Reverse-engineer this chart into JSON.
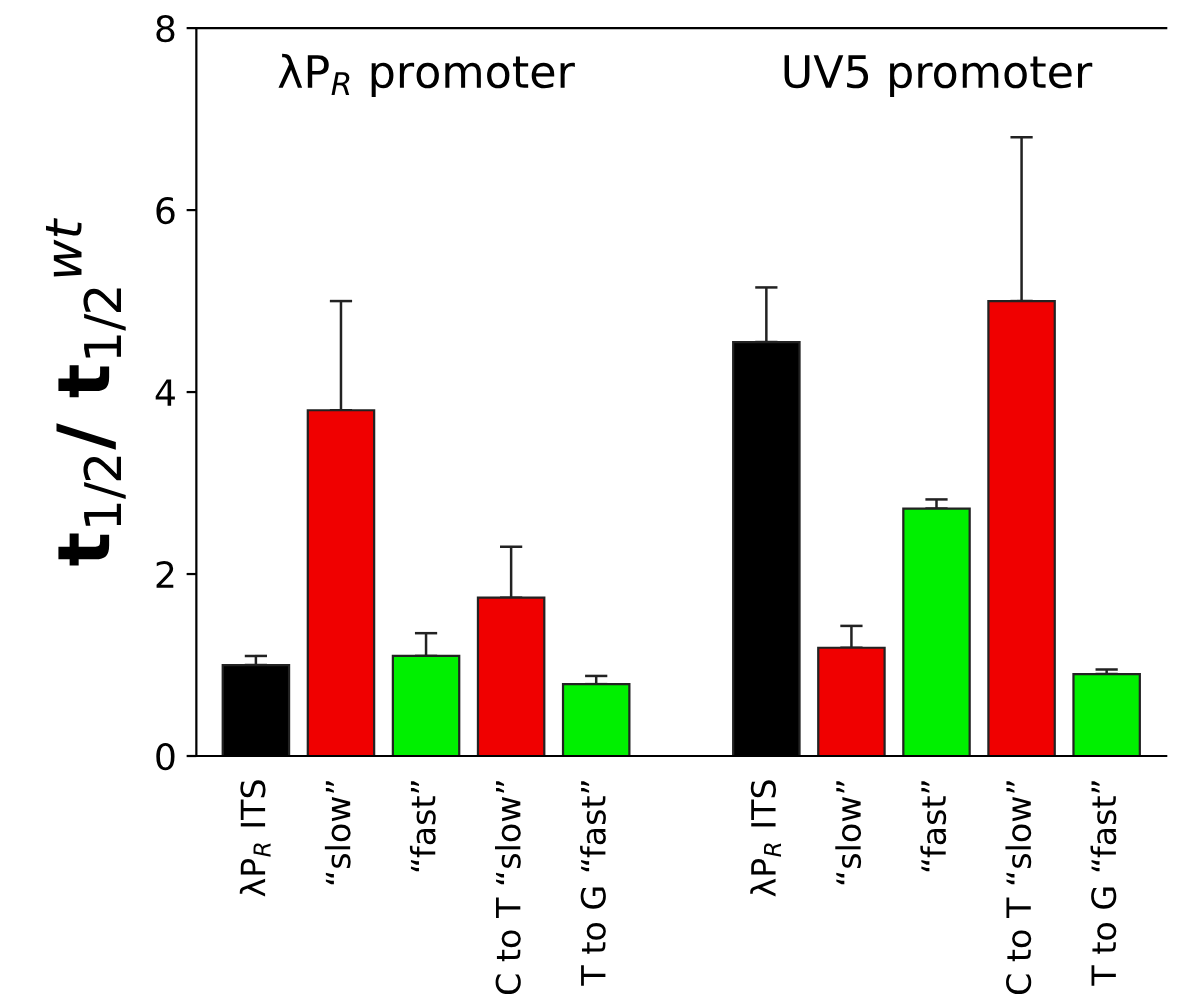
{
  "chart_data": {
    "type": "bar",
    "ylabel": "t$_{1/2}$/ t$_{1/2}$$^{wt}$",
    "annotations": [
      "λP$_{R}$ promoter",
      "UV5 promoter"
    ],
    "categories": [
      "λP$_{R}$ ITS",
      "“slow”",
      "“fast”",
      "C to T “slow”",
      "T to G “fast”",
      null,
      "λP$_{R}$ ITS",
      "“slow”",
      "“fast”",
      "C to T “slow”",
      "T to G “fast”"
    ],
    "values": [
      1.0,
      3.8,
      1.1,
      1.74,
      0.79,
      null,
      4.55,
      1.19,
      2.72,
      5.0,
      0.9
    ],
    "colors": [
      "#000000",
      "#f00000",
      "#00f000",
      "#f00000",
      "#00f000",
      "#000000",
      "#000000",
      "#f00000",
      "#00f000",
      "#f00000",
      "#00f000"
    ],
    "errors": [
      [
        1.0,
        1.1
      ],
      [
        3.8,
        5.0
      ],
      [
        1.1,
        1.35
      ],
      [
        1.74,
        2.3
      ],
      [
        0.79,
        0.88
      ],
      null,
      [
        4.55,
        5.15
      ],
      [
        1.19,
        1.43
      ],
      [
        2.72,
        2.82
      ],
      [
        5.0,
        6.8
      ],
      [
        0.9,
        0.95
      ]
    ],
    "ylim": [
      0,
      8
    ],
    "yticks": [
      0,
      2,
      4,
      6,
      8
    ],
    "grid": false
  }
}
